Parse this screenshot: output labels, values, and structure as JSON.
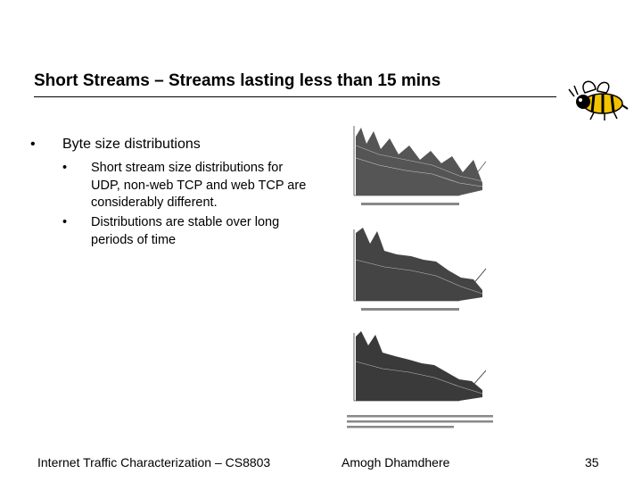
{
  "slide": {
    "title": "Short Streams – Streams lasting less than 15 mins",
    "bullets": [
      {
        "text": "Byte size distributions",
        "sub": [
          "Short stream size distributions for UDP, non-web TCP and web TCP are considerably different.",
          "Distributions are stable over long periods of time"
        ]
      }
    ],
    "bullet_glyph": "•",
    "mascot_icon": "yellowjacket-bee-icon",
    "figure_icon": "three-3d-surface-plots-icon"
  },
  "footer": {
    "left": "Internet Traffic Characterization – CS8803",
    "center": "Amogh Dhamdhere",
    "page": "35"
  }
}
